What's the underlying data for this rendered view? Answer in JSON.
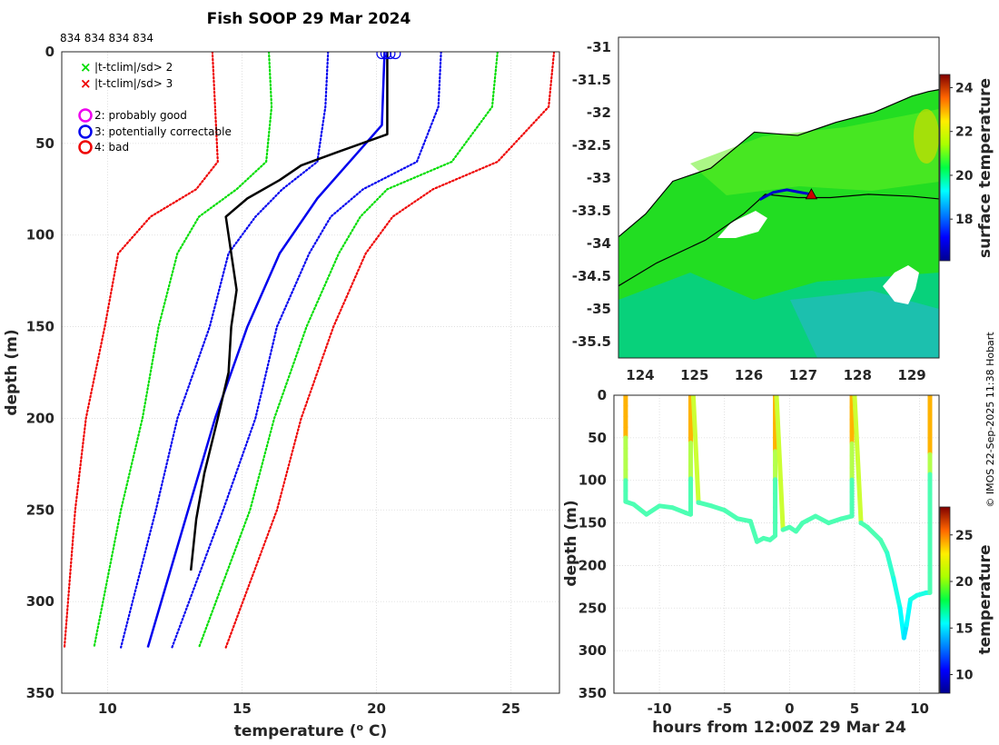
{
  "figure": {
    "title": "Fish SOOP 29 Mar 2024",
    "profile_ids": "834 834 834 834",
    "credit": "© IMOS 22-Sep-2025 11:38 Hobart"
  },
  "colors": {
    "flag_green": "#00dd00",
    "flag_red": "#ee0000",
    "flag_blue": "#0000ee",
    "profile": "#000000",
    "circle_magenta": "#ee00ee",
    "ship_marker": "#cc0000"
  },
  "legend": {
    "items": [
      {
        "symbol": "x",
        "color": "#00dd00",
        "label": "|t-tclim|/sd> 2"
      },
      {
        "symbol": "x",
        "color": "#ee0000",
        "label": "|t-tclim|/sd> 3"
      },
      {
        "symbol": "o",
        "color": "#ee00ee",
        "label": "2: probably good"
      },
      {
        "symbol": "o",
        "color": "#0000ee",
        "label": "3: potentially correctable"
      },
      {
        "symbol": "o",
        "color": "#ee0000",
        "label": "4: bad"
      }
    ]
  },
  "chart_data": [
    {
      "id": "profile",
      "type": "line",
      "title": "Fish SOOP 29 Mar 2024",
      "xlabel": "temperature (° C)",
      "ylabel": "depth (m)",
      "xlim": [
        8.3,
        26.8
      ],
      "ylim": [
        350,
        0
      ],
      "xticks": [
        10,
        15,
        20,
        25
      ],
      "yticks": [
        0,
        50,
        100,
        150,
        200,
        250,
        300,
        350
      ],
      "grid": true,
      "series": [
        {
          "name": "clim -3sd",
          "color": "#ee0000",
          "style": "dotted",
          "depth": [
            0,
            30,
            60,
            75,
            90,
            110,
            150,
            200,
            250,
            325
          ],
          "temp": [
            13.9,
            14.0,
            14.1,
            13.3,
            11.6,
            10.4,
            9.9,
            9.2,
            8.8,
            8.4
          ]
        },
        {
          "name": "clim -2sd",
          "color": "#00dd00",
          "style": "dotted",
          "depth": [
            0,
            30,
            60,
            75,
            90,
            110,
            150,
            200,
            250,
            325
          ],
          "temp": [
            16.0,
            16.1,
            15.9,
            14.8,
            13.4,
            12.6,
            11.9,
            11.3,
            10.5,
            9.5
          ]
        },
        {
          "name": "clim -1sd",
          "color": "#0000ee",
          "style": "dotted",
          "depth": [
            0,
            30,
            60,
            75,
            90,
            110,
            150,
            200,
            250,
            325
          ],
          "temp": [
            18.2,
            18.1,
            17.8,
            16.5,
            15.5,
            14.5,
            13.8,
            12.6,
            11.8,
            10.5
          ]
        },
        {
          "name": "clim +1sd",
          "color": "#0000ee",
          "style": "dotted",
          "depth": [
            0,
            30,
            60,
            75,
            90,
            110,
            150,
            200,
            250,
            325
          ],
          "temp": [
            22.4,
            22.3,
            21.5,
            19.5,
            18.3,
            17.5,
            16.3,
            15.5,
            14.3,
            12.4
          ]
        },
        {
          "name": "clim +2sd",
          "color": "#00dd00",
          "style": "dotted",
          "depth": [
            0,
            30,
            60,
            75,
            90,
            110,
            150,
            200,
            250,
            325
          ],
          "temp": [
            24.5,
            24.3,
            22.8,
            20.4,
            19.4,
            18.6,
            17.4,
            16.2,
            15.3,
            13.4
          ]
        },
        {
          "name": "clim +3sd",
          "color": "#ee0000",
          "style": "dotted",
          "depth": [
            0,
            30,
            60,
            75,
            90,
            110,
            150,
            200,
            250,
            325
          ],
          "temp": [
            26.6,
            26.4,
            24.5,
            22.1,
            20.6,
            19.6,
            18.4,
            17.2,
            16.3,
            14.4
          ]
        },
        {
          "name": "flag 3 profile",
          "color": "#0000ee",
          "style": "solid",
          "depth": [
            0,
            40,
            60,
            80,
            110,
            150,
            200,
            250,
            300,
            325
          ],
          "temp": [
            20.3,
            20.2,
            19.0,
            17.8,
            16.4,
            15.2,
            14.0,
            13.0,
            12.0,
            11.5
          ]
        },
        {
          "name": "profile",
          "color": "#000000",
          "style": "solid",
          "depth": [
            0,
            20,
            45,
            55,
            62,
            70,
            80,
            90,
            110,
            130,
            150,
            175,
            200,
            230,
            255,
            283
          ],
          "temp": [
            20.4,
            20.4,
            20.4,
            18.5,
            17.2,
            16.4,
            15.2,
            14.4,
            14.6,
            14.8,
            14.6,
            14.5,
            14.1,
            13.6,
            13.3,
            13.1
          ]
        }
      ]
    },
    {
      "id": "map",
      "type": "heatmap",
      "xlim": [
        123.6,
        129.5
      ],
      "ylim": [
        -35.75,
        -30.85
      ],
      "xticks": [
        124,
        125,
        126,
        127,
        128,
        129
      ],
      "yticks": [
        -31,
        -31.5,
        -32,
        -32.5,
        -33,
        -33.5,
        -34,
        -34.5,
        -35,
        -35.5
      ],
      "colorbar": {
        "label": "surface temperature",
        "range": [
          16.1,
          24.6
        ],
        "ticks": [
          18,
          20,
          22,
          24
        ]
      },
      "coast": {
        "lon": [
          123.6,
          124.1,
          124.6,
          125.3,
          126.1,
          126.9,
          127.6,
          128.3,
          129.0,
          129.3,
          129.5
        ],
        "lat": [
          -33.9,
          -33.55,
          -33.05,
          -32.85,
          -32.3,
          -32.35,
          -32.15,
          -32.0,
          -31.75,
          -31.68,
          -31.65
        ]
      },
      "isobath": {
        "lon": [
          123.6,
          124.3,
          125.2,
          125.9,
          126.3,
          126.9,
          127.5,
          128.2,
          129.0,
          129.5
        ],
        "lat": [
          -34.65,
          -34.3,
          -33.95,
          -33.55,
          -33.25,
          -33.3,
          -33.3,
          -33.25,
          -33.28,
          -33.32
        ]
      },
      "track": {
        "lon": [
          126.2,
          126.45,
          126.7,
          126.95,
          127.15
        ],
        "lat": [
          -33.33,
          -33.22,
          -33.18,
          -33.22,
          -33.25
        ]
      },
      "ship_position": {
        "lon": 127.15,
        "lat": -33.25
      }
    },
    {
      "id": "time_depth",
      "type": "scatter",
      "xlabel": "hours from 12:00Z 29 Mar 24",
      "ylabel": "depth (m)",
      "xlim": [
        -13.5,
        11.5
      ],
      "ylim": [
        350,
        0
      ],
      "xticks": [
        -10,
        -5,
        0,
        5,
        10
      ],
      "yticks": [
        0,
        50,
        100,
        150,
        200,
        250,
        300,
        350
      ],
      "colorbar": {
        "label": "temperature",
        "range": [
          8,
          28
        ],
        "ticks": [
          10,
          15,
          20,
          25
        ]
      },
      "hours": [
        -12.6,
        -12.6,
        -12.0,
        -11.0,
        -10.0,
        -9.0,
        -8.0,
        -7.6,
        -7.6,
        -7.4,
        -7.0,
        -7.0,
        -6.0,
        -5.0,
        -4.0,
        -3.0,
        -2.5,
        -2.0,
        -1.5,
        -1.1,
        -1.1,
        -1.0,
        -0.5,
        0.0,
        0.5,
        1.0,
        2.0,
        3.0,
        4.0,
        4.8,
        4.8,
        5.0,
        5.5,
        5.5,
        6.0,
        7.0,
        7.5,
        8.0,
        8.5,
        8.8,
        9.0,
        9.3,
        9.8,
        10.5,
        10.8,
        10.8
      ],
      "depth": [
        0,
        125,
        128,
        140,
        130,
        132,
        138,
        140,
        0,
        0,
        126,
        126,
        130,
        135,
        145,
        148,
        172,
        168,
        170,
        165,
        0,
        0,
        158,
        155,
        160,
        150,
        142,
        150,
        145,
        142,
        0,
        0,
        150,
        150,
        155,
        170,
        185,
        215,
        250,
        285,
        270,
        240,
        235,
        232,
        232,
        0
      ],
      "temps": [
        22,
        17,
        17,
        17,
        17,
        17,
        17,
        17,
        22,
        22,
        17,
        17,
        17,
        17,
        17,
        17,
        17,
        17,
        17,
        17,
        22,
        22,
        17,
        17,
        17,
        17,
        17,
        17,
        17,
        17,
        22,
        22,
        17,
        17,
        17,
        17,
        17,
        16,
        16,
        15,
        15,
        16,
        16,
        16,
        16,
        22
      ]
    }
  ]
}
